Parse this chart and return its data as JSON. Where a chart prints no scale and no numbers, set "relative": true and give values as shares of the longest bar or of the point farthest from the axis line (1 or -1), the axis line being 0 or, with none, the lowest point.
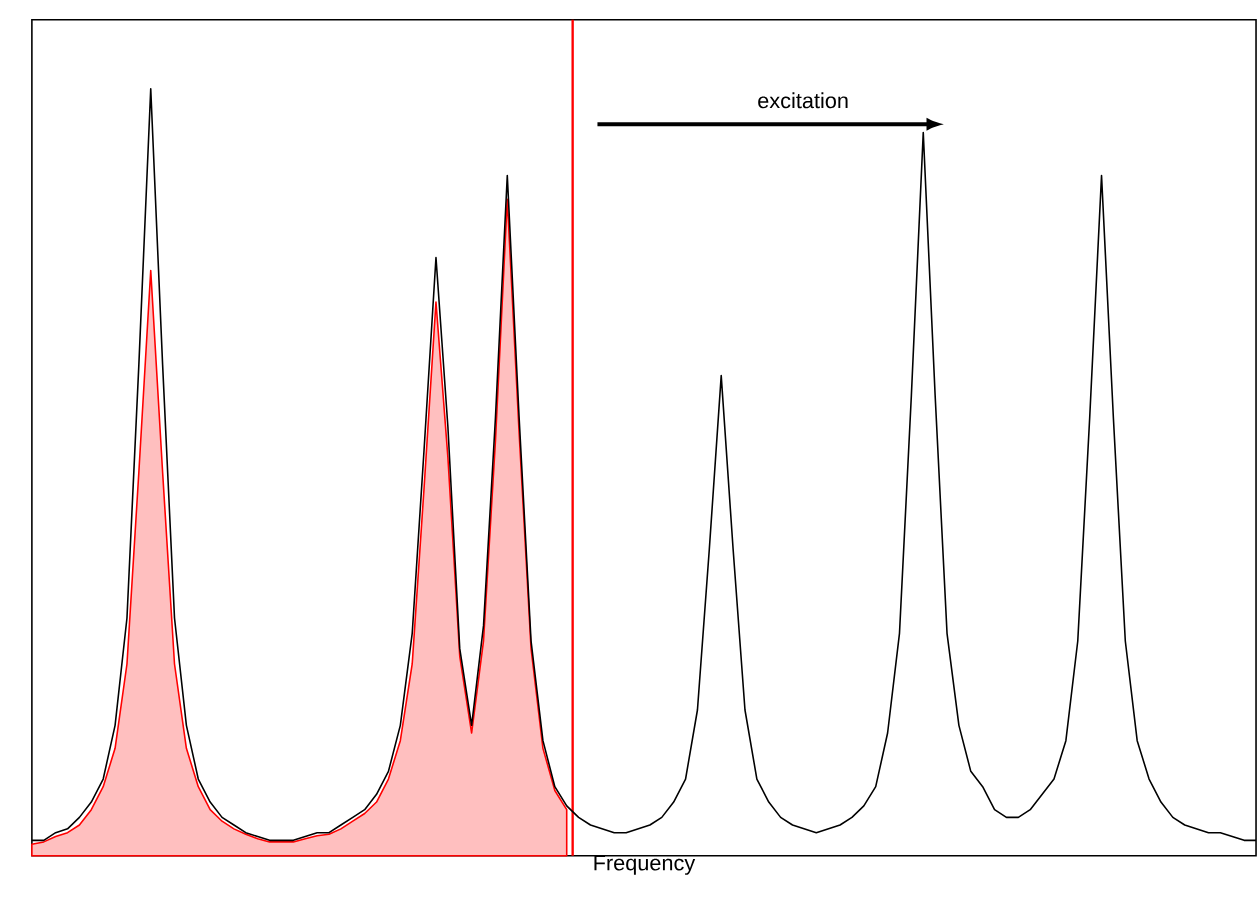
{
  "chart_data": {
    "type": "line",
    "xlabel": "Frequency",
    "relative": true,
    "marker": "none",
    "line_style": "solid",
    "categories": [
      null,
      null,
      null,
      null,
      null,
      null,
      null,
      null,
      null,
      null,
      null,
      null,
      null,
      null,
      null,
      null,
      null,
      null,
      null,
      null,
      null,
      null,
      null,
      null,
      null,
      null,
      null,
      null,
      null,
      null,
      null,
      null,
      null,
      null,
      null,
      null,
      null,
      null,
      null,
      null,
      null,
      null,
      null,
      null,
      null,
      null,
      null,
      null,
      null,
      null,
      null,
      null,
      null,
      null,
      null,
      null,
      null,
      null,
      null,
      null,
      null,
      null,
      null,
      null,
      null,
      null,
      null,
      null,
      null,
      null,
      null,
      null,
      null,
      null,
      null,
      null,
      null,
      null,
      null,
      null,
      null,
      null,
      null,
      null,
      null,
      null,
      null,
      null,
      null,
      null,
      null,
      null,
      null,
      null,
      null,
      null,
      null,
      null,
      null,
      null,
      null,
      null,
      null,
      null
    ],
    "series": [
      {
        "type": "area",
        "color": "#ff0000",
        "values": [
          0.015,
          0.018,
          0.025,
          0.03,
          0.04,
          0.06,
          0.09,
          0.14,
          0.25,
          0.5,
          0.763,
          0.5,
          0.25,
          0.14,
          0.09,
          0.06,
          0.045,
          0.035,
          0.028,
          0.022,
          0.018,
          0.018,
          0.018,
          0.022,
          0.026,
          0.028,
          0.035,
          0.045,
          0.055,
          0.07,
          0.1,
          0.15,
          0.25,
          0.48,
          0.722,
          0.52,
          0.26,
          0.16,
          0.28,
          0.54,
          0.856,
          0.55,
          0.27,
          0.14,
          0.085,
          0.06,
          null,
          null,
          null,
          null,
          null,
          null,
          null,
          null,
          null,
          null,
          null,
          null,
          null,
          null,
          null,
          null,
          null,
          null,
          null,
          null,
          null,
          null,
          null,
          null,
          null,
          null,
          null,
          null,
          null,
          null,
          null,
          null,
          null,
          null,
          null,
          null,
          null,
          null,
          null,
          null,
          null,
          null,
          null,
          null,
          null,
          null,
          null,
          null,
          null,
          null,
          null,
          null,
          null,
          null,
          null,
          null,
          null,
          null
        ]
      },
      {
        "color": "#000000",
        "values": [
          0.02,
          0.02,
          0.03,
          0.035,
          0.05,
          0.07,
          0.1,
          0.17,
          0.31,
          0.64,
          1.0,
          0.64,
          0.31,
          0.17,
          0.1,
          0.07,
          0.05,
          0.04,
          0.03,
          0.025,
          0.02,
          0.02,
          0.02,
          0.025,
          0.03,
          0.03,
          0.04,
          0.05,
          0.06,
          0.08,
          0.11,
          0.17,
          0.29,
          0.53,
          0.78,
          0.56,
          0.27,
          0.17,
          0.3,
          0.57,
          0.887,
          0.57,
          0.28,
          0.15,
          0.09,
          0.065,
          0.05,
          0.04,
          0.035,
          0.03,
          0.03,
          0.035,
          0.04,
          0.05,
          0.07,
          0.1,
          0.19,
          0.4,
          0.626,
          0.4,
          0.19,
          0.1,
          0.07,
          0.05,
          0.04,
          0.035,
          0.03,
          0.035,
          0.04,
          0.05,
          0.065,
          0.09,
          0.16,
          0.29,
          0.6,
          0.943,
          0.6,
          0.29,
          0.17,
          0.11,
          0.09,
          0.06,
          0.05,
          0.05,
          0.06,
          0.08,
          0.1,
          0.15,
          0.28,
          0.57,
          0.887,
          0.57,
          0.28,
          0.15,
          0.1,
          0.07,
          0.05,
          0.04,
          0.035,
          0.03,
          0.03,
          0.025,
          0.02,
          0.02
        ]
      }
    ],
    "annotations": [
      "excitation"
    ]
  }
}
